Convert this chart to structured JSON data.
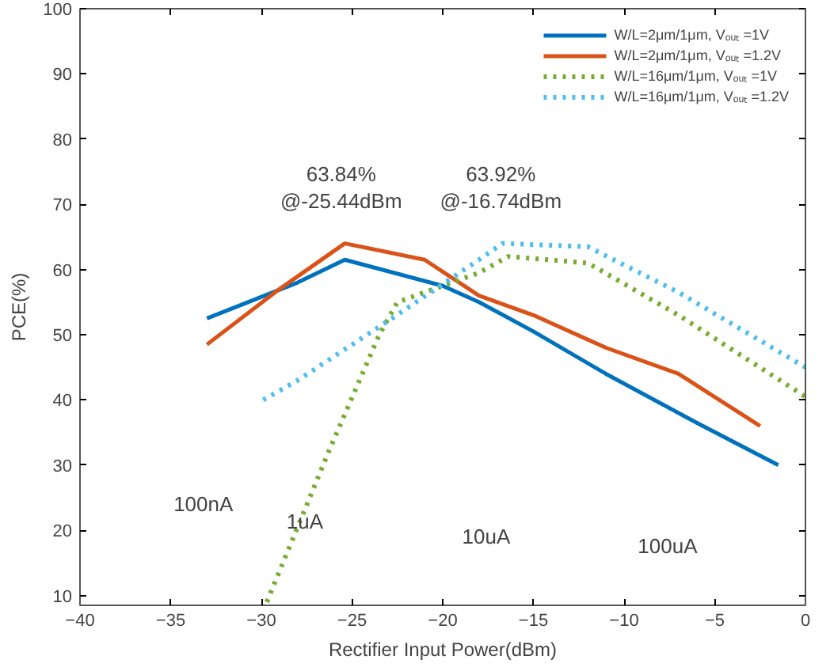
{
  "chart_data": {
    "type": "line",
    "xlabel": "Rectifier Input Power(dBm)",
    "ylabel": "PCE(%)",
    "xlim": [
      -40,
      0
    ],
    "xticks": [
      -40,
      -35,
      -30,
      -25,
      -20,
      -15,
      -10,
      -5,
      0
    ],
    "ylim": [
      8.5,
      100
    ],
    "yticks": [
      10,
      20,
      30,
      40,
      50,
      60,
      70,
      80,
      90,
      100
    ],
    "grid": false,
    "legend": "top right",
    "marker": "none",
    "series": [
      {
        "name": "W/L=2μm/1μm, Vₒᵤₜ =1V",
        "color": "#0072bd",
        "line_style": "solid",
        "x": [
          -33,
          -28,
          -25.4,
          -20,
          -18,
          -15,
          -11,
          -6,
          -1.5
        ],
        "values": [
          52.5,
          58,
          61.5,
          57.5,
          55,
          50.5,
          44,
          36.5,
          30
        ]
      },
      {
        "name": "W/L=2μm/1μm, Vₒᵤₜ =1.2V",
        "color": "#d95319",
        "line_style": "solid",
        "x": [
          -33,
          -29,
          -25.4,
          -21,
          -18,
          -15,
          -11,
          -7,
          -2.5
        ],
        "values": [
          48.5,
          57,
          64,
          61.5,
          56,
          53,
          48,
          44,
          36
        ]
      },
      {
        "name": "W/L=16μm/1μm, Vₒᵤₜ =1V",
        "color": "#77ac30",
        "line_style": "dotted",
        "x": [
          -29.7,
          -26.3,
          -23.5,
          -22.5,
          -20,
          -18,
          -16.4,
          -12,
          -7,
          0
        ],
        "values": [
          9,
          32,
          50,
          55,
          57.5,
          59.5,
          62,
          61,
          53,
          40.5
        ]
      },
      {
        "name": "W/L=16μm/1μm, Vₒᵤₜ =1.2V",
        "color": "#4dbeee",
        "line_style": "dotted",
        "x": [
          -29.9,
          -28,
          -22.8,
          -18,
          -16.7,
          -12,
          -7,
          0
        ],
        "values": [
          40,
          43,
          52.5,
          61.5,
          64,
          63.5,
          56.5,
          45
        ]
      }
    ],
    "annotations": [
      "63.84%\n@-25.44dBm",
      "63.92%\n@-16.74dBm",
      "100nA",
      "1uA",
      "10uA",
      "100uA"
    ]
  }
}
